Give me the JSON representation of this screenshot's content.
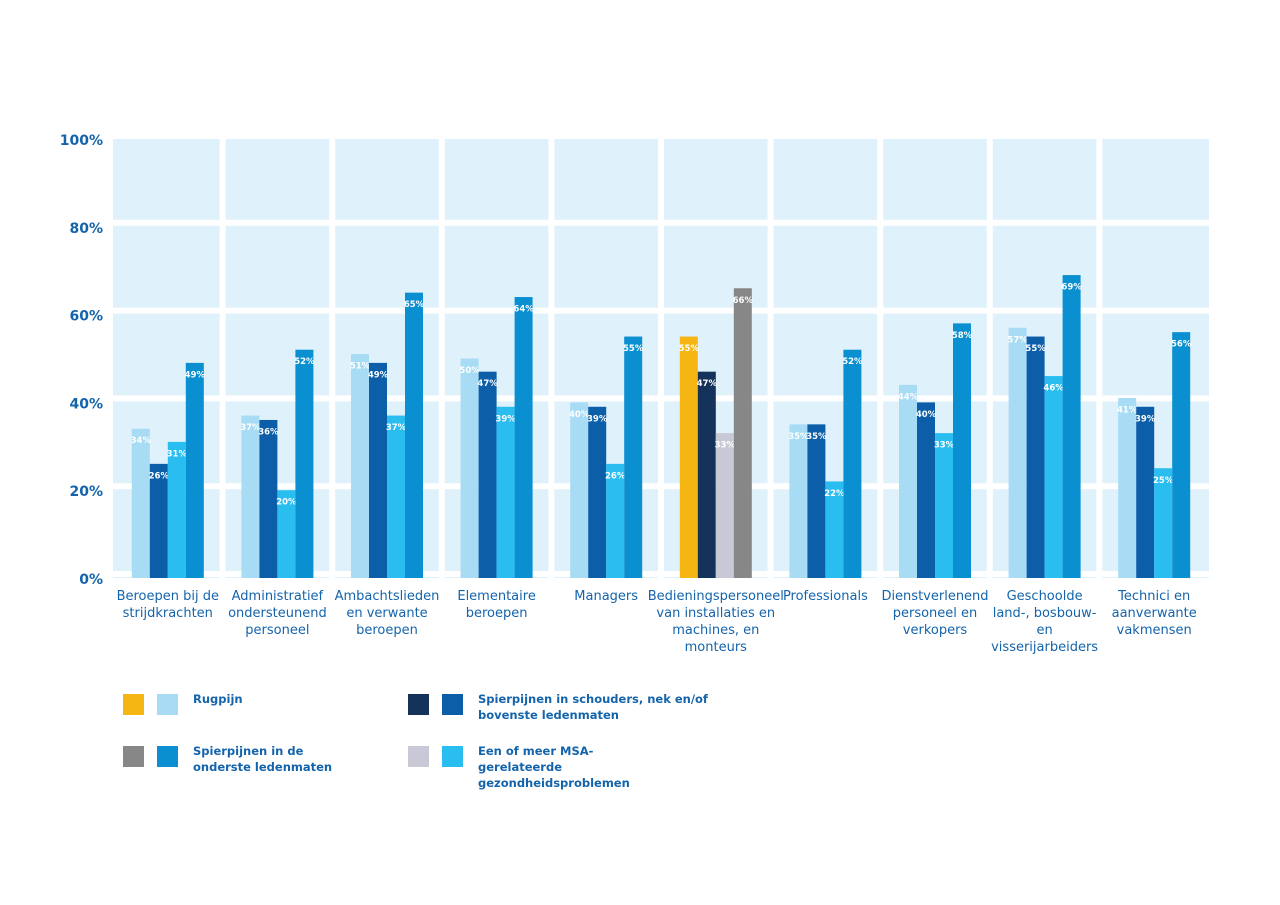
{
  "chart_data": {
    "type": "bar",
    "categories": [
      "Beroepen bij de strijdkrachten",
      "Administratief ondersteunend personeel",
      "Ambachtslieden en verwante beroepen",
      "Elementaire beroepen",
      "Managers",
      "Bedieningspersoneel van installaties en machines, en monteurs",
      "Professionals",
      "Dienstverlenend personeel en verkopers",
      "Geschoolde land-, bosbouw- en visserijarbeiders",
      "Technici en aanverwante vakmensen"
    ],
    "highlight": 5,
    "series": [
      {
        "name": "Rugpijn",
        "color": "#a8dcf5",
        "highlight_color": "#f5b614",
        "values": [
          34,
          37,
          51,
          50,
          40,
          55,
          35,
          44,
          57,
          41
        ],
        "value_labels": [
          "34%",
          "37%",
          "51%",
          "50%",
          "40%",
          "55%",
          "35%",
          "44%",
          "57%",
          "41%"
        ]
      },
      {
        "name": "Spierpijnen in schouders, nek en/of bovenste ledenmaten",
        "color": "#0c5ea8",
        "highlight_color": "#15335a",
        "values": [
          26,
          36,
          49,
          47,
          39,
          47,
          35,
          40,
          55,
          39
        ],
        "value_labels": [
          "26%",
          "36%",
          "49%",
          "47%",
          "39%",
          "47%",
          "35%",
          "40%",
          "55%",
          "39%"
        ]
      },
      {
        "name": "Een of meer MSA-gerelateerde gezondheidsproblemen",
        "color": "#29bdf0",
        "highlight_color": "#c8c8d6",
        "values": [
          31,
          20,
          37,
          39,
          26,
          33,
          22,
          33,
          46,
          25
        ],
        "value_labels": [
          "31%",
          "20%",
          "37%",
          "39%",
          "26%",
          "33%",
          "22%",
          "33%",
          "46%",
          "25%"
        ]
      },
      {
        "name": "Spierpijnen in de onderste ledenmaten",
        "color": "#0a8fd0",
        "highlight_color": "#878787",
        "values": [
          49,
          52,
          65,
          64,
          55,
          66,
          52,
          58,
          69,
          56
        ],
        "value_labels": [
          "49%",
          "52%",
          "65%",
          "64%",
          "55%",
          "66%",
          "52%",
          "58%",
          "69%",
          "56%"
        ]
      }
    ],
    "ylim": [
      0,
      100
    ],
    "yticks": [
      {
        "value": 0,
        "label": "0%"
      },
      {
        "value": 20,
        "label": "20%"
      },
      {
        "value": 40,
        "label": "40%"
      },
      {
        "value": 60,
        "label": "60%"
      },
      {
        "value": 80,
        "label": "80%"
      },
      {
        "value": 100,
        "label": "100%"
      }
    ],
    "grid": true
  }
}
